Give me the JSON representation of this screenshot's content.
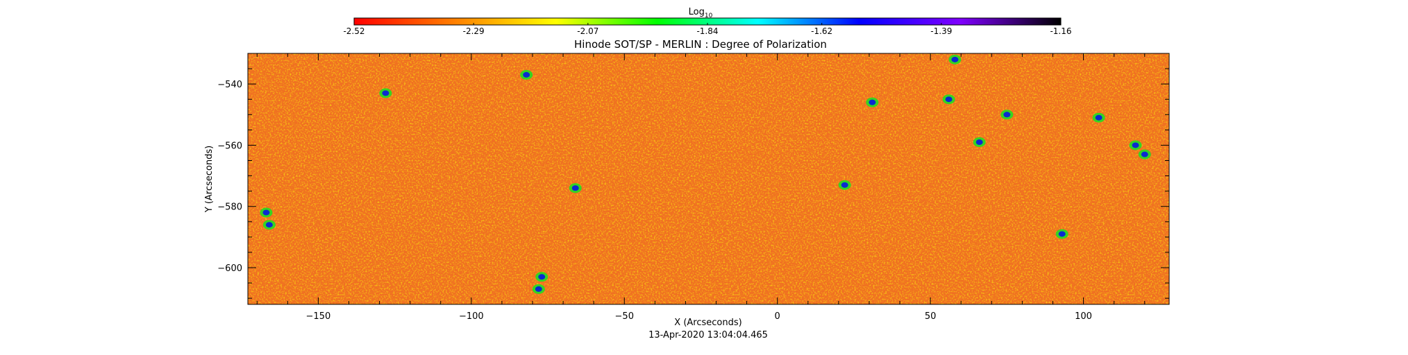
{
  "chart_data": {
    "type": "heatmap",
    "title": "Hinode SOT/SP - MERLIN : Degree of Polarization",
    "xlabel": "X (Arcseconds)",
    "ylabel": "Y (Arcseconds)",
    "timestamp": "13-Apr-2020 13:04:04.465",
    "xlim": [
      -173,
      128
    ],
    "ylim": [
      -612,
      -530
    ],
    "x_ticks": [
      -150,
      -100,
      -50,
      0,
      50,
      100
    ],
    "y_ticks": [
      -540,
      -560,
      -580,
      -600
    ],
    "colorbar": {
      "label_base": "Log",
      "label_sub": "10",
      "range": [
        -2.52,
        -1.16
      ],
      "tick_labels": [
        "-2.52",
        "-2.29",
        "-2.07",
        "-1.84",
        "-1.62",
        "-1.39",
        "-1.16"
      ],
      "colors": [
        "#ff0000",
        "#ff8000",
        "#ffff00",
        "#00ff00",
        "#00ffff",
        "#0000ff",
        "#7f00ff",
        "#000000"
      ]
    },
    "field": {
      "background_level": -2.36,
      "strong_regions": [
        {
          "x": -167,
          "y": -582,
          "level": -1.45
        },
        {
          "x": -166,
          "y": -586,
          "level": -1.4
        },
        {
          "x": -128,
          "y": -543,
          "level": -1.42
        },
        {
          "x": -82,
          "y": -537,
          "level": -1.4
        },
        {
          "x": -66,
          "y": -574,
          "level": -1.45
        },
        {
          "x": -77,
          "y": -603,
          "level": -1.4
        },
        {
          "x": -78,
          "y": -607,
          "level": -1.5
        },
        {
          "x": 22,
          "y": -573,
          "level": -1.42
        },
        {
          "x": 31,
          "y": -546,
          "level": -1.4
        },
        {
          "x": 58,
          "y": -532,
          "level": -1.4
        },
        {
          "x": 56,
          "y": -545,
          "level": -1.45
        },
        {
          "x": 66,
          "y": -559,
          "level": -1.4
        },
        {
          "x": 75,
          "y": -550,
          "level": -1.42
        },
        {
          "x": 105,
          "y": -551,
          "level": -1.4
        },
        {
          "x": 117,
          "y": -560,
          "level": -1.45
        },
        {
          "x": 120,
          "y": -563,
          "level": -1.4
        },
        {
          "x": 93,
          "y": -589,
          "level": -1.45
        }
      ]
    }
  }
}
